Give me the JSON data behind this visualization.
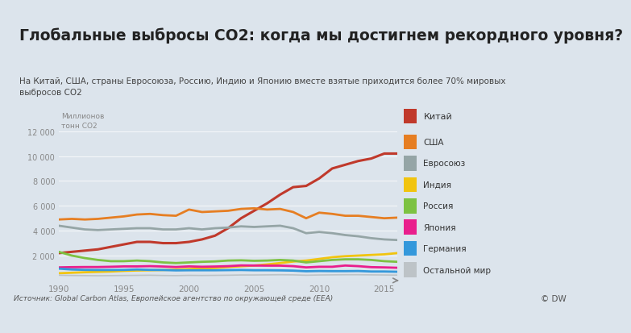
{
  "title": "Глобальные выбросы СО2: когда мы достигнем рекордного уровня?",
  "subtitle": "На Китай, США, страны Евросоюза, Россию, Индию и Японию вместе взятые приходится более 70% мировых\nвыбросов СО2",
  "ylabel": "Миллионов\nтонн СО2",
  "source": "Источник: Global Carbon Atlas, Европейское агентство по окружающей среде (EEA)",
  "dw": "© DW",
  "years": [
    1990,
    1991,
    1992,
    1993,
    1994,
    1995,
    1996,
    1997,
    1998,
    1999,
    2000,
    2001,
    2002,
    2003,
    2004,
    2005,
    2006,
    2007,
    2008,
    2009,
    2010,
    2011,
    2012,
    2013,
    2014,
    2015,
    2016
  ],
  "series": {
    "Китай": {
      "color": "#c0392b",
      "data": [
        2200,
        2300,
        2400,
        2500,
        2700,
        2900,
        3100,
        3100,
        3000,
        3000,
        3100,
        3300,
        3600,
        4200,
        5000,
        5600,
        6200,
        6900,
        7500,
        7600,
        8200,
        9000,
        9300,
        9600,
        9800,
        10200,
        10200
      ]
    },
    "США": {
      "color": "#e67e22",
      "data": [
        4900,
        4950,
        4900,
        4950,
        5050,
        5150,
        5300,
        5350,
        5250,
        5200,
        5700,
        5500,
        5550,
        5600,
        5750,
        5800,
        5700,
        5750,
        5500,
        5000,
        5450,
        5350,
        5200,
        5200,
        5100,
        5000,
        5050
      ]
    },
    "Евросоюз": {
      "color": "#95a5a6",
      "data": [
        4400,
        4250,
        4100,
        4050,
        4100,
        4150,
        4200,
        4200,
        4100,
        4100,
        4200,
        4100,
        4200,
        4250,
        4350,
        4300,
        4350,
        4400,
        4200,
        3800,
        3900,
        3800,
        3650,
        3550,
        3400,
        3300,
        3250
      ]
    },
    "Индия": {
      "color": "#f1c40f",
      "data": [
        580,
        620,
        660,
        690,
        720,
        770,
        800,
        820,
        840,
        870,
        920,
        960,
        1000,
        1080,
        1140,
        1200,
        1290,
        1400,
        1520,
        1600,
        1730,
        1870,
        1950,
        2000,
        2050,
        2100,
        2200
      ]
    },
    "Россия": {
      "color": "#7dc242",
      "data": [
        2300,
        2000,
        1800,
        1650,
        1550,
        1550,
        1600,
        1550,
        1450,
        1400,
        1450,
        1500,
        1530,
        1600,
        1620,
        1580,
        1600,
        1650,
        1600,
        1450,
        1550,
        1650,
        1700,
        1700,
        1650,
        1550,
        1500
      ]
    },
    "Япония": {
      "color": "#e91e8c",
      "data": [
        1050,
        1070,
        1080,
        1080,
        1100,
        1130,
        1130,
        1150,
        1120,
        1080,
        1130,
        1100,
        1120,
        1150,
        1210,
        1200,
        1190,
        1190,
        1150,
        1050,
        1100,
        1100,
        1200,
        1150,
        1070,
        1050,
        1020
      ]
    },
    "Германия": {
      "color": "#3498db",
      "data": [
        950,
        880,
        850,
        840,
        840,
        850,
        880,
        850,
        840,
        810,
        820,
        820,
        820,
        830,
        840,
        820,
        820,
        810,
        790,
        740,
        760,
        750,
        750,
        760,
        720,
        720,
        700
      ]
    },
    "Остальной мир": {
      "color": "#bdc3c7",
      "data": [
        420,
        400,
        390,
        380,
        390,
        400,
        410,
        420,
        400,
        390,
        410,
        400,
        410,
        420,
        440,
        440,
        450,
        460,
        450,
        420,
        440,
        450,
        460,
        460,
        450,
        440,
        430
      ]
    }
  },
  "ylim": [
    0,
    12000
  ],
  "yticks": [
    0,
    2000,
    4000,
    6000,
    8000,
    10000,
    12000
  ],
  "bg_color": "#dce4ec",
  "plot_bg_color": "#dce4ec",
  "title_bg": "#ffffff",
  "legend_order": [
    "Китай",
    "США",
    "Евросоюз",
    "Индия",
    "Россия",
    "Япония",
    "Германия",
    "Остальной мир"
  ]
}
